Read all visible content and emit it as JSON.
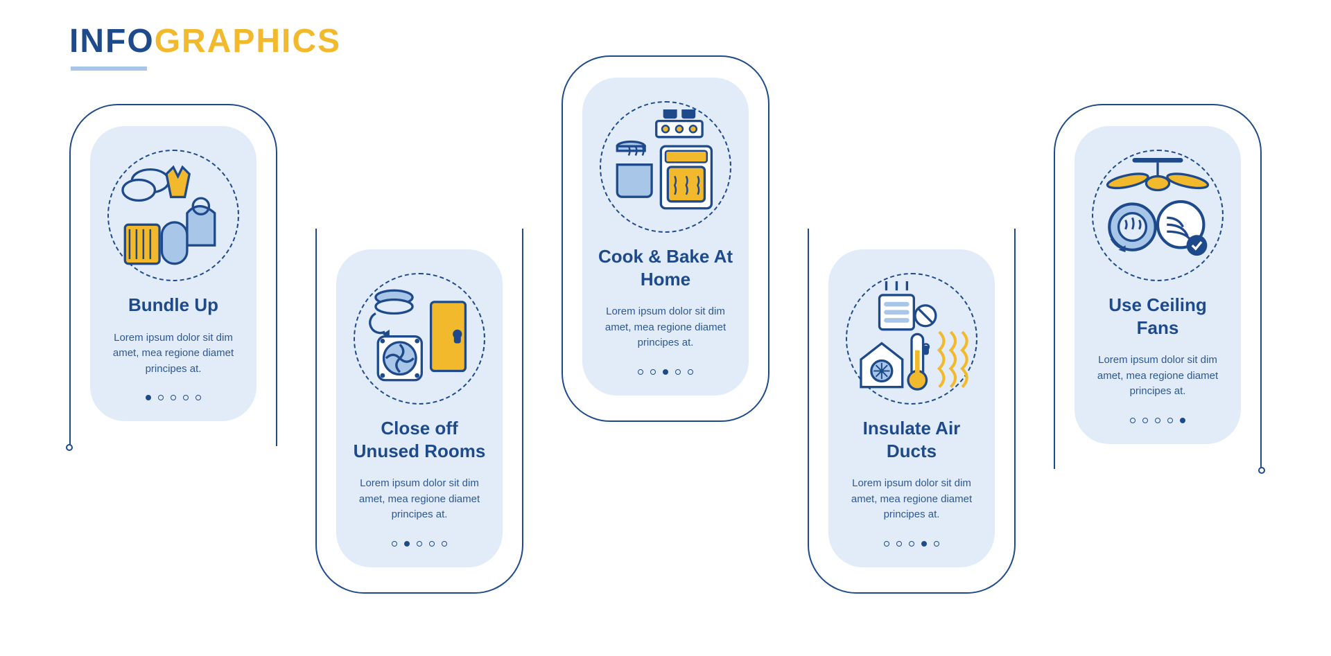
{
  "heading": {
    "part1": "INFO",
    "part2": "GRAPHICS"
  },
  "colors": {
    "primary": "#1e4a8c",
    "accent": "#f2b92c",
    "light": "#e1ecf8",
    "lightAccent": "#a7c6e8",
    "white": "#ffffff",
    "text": "#1e4a8c"
  },
  "layout": {
    "cardWidth": 300,
    "gap": 55,
    "upTop": 40,
    "downTop": 220,
    "middleOffset": -70
  },
  "cards": [
    {
      "id": "bundle-up",
      "title": "Bundle Up",
      "desc": "Lorem ipsum dolor sit dim amet, mea regione diamet principes at.",
      "activeDot": 0,
      "position": "up",
      "icon": "clothes"
    },
    {
      "id": "close-rooms",
      "title": "Close off Unused Rooms",
      "desc": "Lorem ipsum dolor sit dim amet, mea regione diamet principes at.",
      "activeDot": 1,
      "position": "down",
      "icon": "rooms"
    },
    {
      "id": "cook-bake",
      "title": "Cook & Bake At Home",
      "desc": "Lorem ipsum dolor sit dim amet, mea regione diamet principes at.",
      "activeDot": 2,
      "position": "middle",
      "icon": "cook"
    },
    {
      "id": "insulate",
      "title": "Insulate Air Ducts",
      "desc": "Lorem ipsum dolor sit dim amet, mea regione diamet principes at.",
      "activeDot": 3,
      "position": "down",
      "icon": "ducts"
    },
    {
      "id": "ceiling-fans",
      "title": "Use Ceiling Fans",
      "desc": "Lorem ipsum dolor sit dim amet, mea regione diamet principes at.",
      "activeDot": 4,
      "position": "up",
      "icon": "fan"
    }
  ],
  "dotCount": 5
}
